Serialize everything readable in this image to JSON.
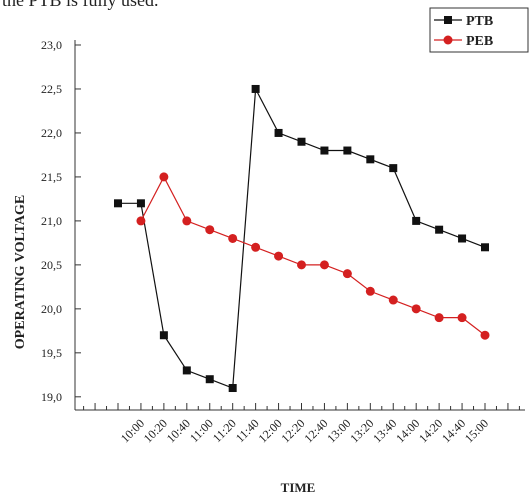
{
  "note": "the PTB is fully used.",
  "chart_data": {
    "type": "line",
    "x_label": "TIME",
    "y_label": "OPERATING VOLTAGE",
    "categories": [
      null,
      "10:00",
      "10:20",
      "10:40",
      "11:00",
      "11:20",
      "11:40",
      "12:00",
      "12:20",
      "12:40",
      "13:00",
      "13:20",
      "13:40",
      "14:00",
      "14:20",
      "14:40",
      "15:00"
    ],
    "series": [
      {
        "name": "PTB",
        "color": "#111111",
        "marker": "square",
        "values": [
          21.2,
          21.2,
          19.7,
          19.3,
          19.2,
          19.1,
          22.5,
          22.0,
          21.9,
          21.8,
          21.8,
          21.7,
          21.6,
          21.0,
          20.9,
          20.8,
          20.7
        ]
      },
      {
        "name": "PEB",
        "color": "#d42020",
        "marker": "circle",
        "values": [
          null,
          21.0,
          21.5,
          21.0,
          20.9,
          20.8,
          20.7,
          20.6,
          20.5,
          20.5,
          20.4,
          20.2,
          20.1,
          20.0,
          19.9,
          19.9,
          19.7
        ]
      }
    ],
    "ylim": [
      18.85,
      23.05
    ],
    "yticks": [
      {
        "value": 19,
        "label": "19,0"
      },
      {
        "value": 19.5,
        "label": "19,5"
      },
      {
        "value": 20,
        "label": "20,0"
      },
      {
        "value": 20.5,
        "label": "20,5"
      },
      {
        "value": 21,
        "label": "21,0"
      },
      {
        "value": 21.5,
        "label": "21,5"
      },
      {
        "value": 22,
        "label": "22,0"
      },
      {
        "value": 22.5,
        "label": "22,5"
      },
      {
        "value": 23,
        "label": "23,0"
      }
    ],
    "legend": "top-right",
    "grid": false
  }
}
